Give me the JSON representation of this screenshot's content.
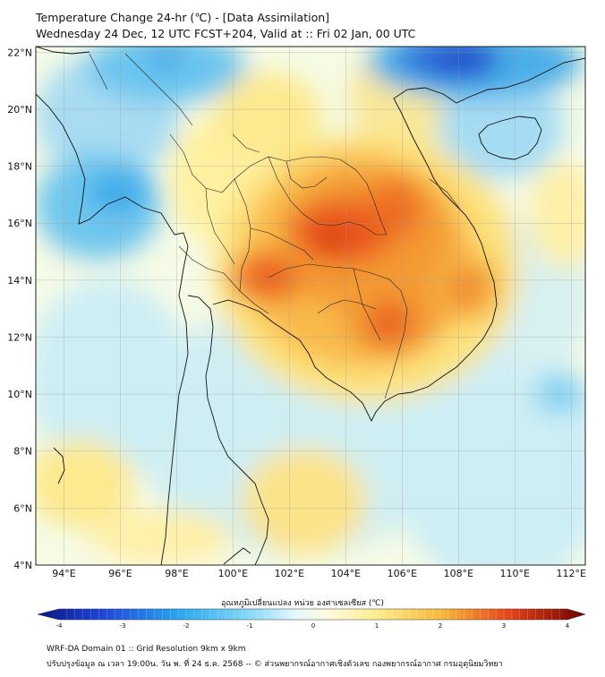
{
  "title": {
    "line1": "Temperature Change 24-hr (℃) - [Data Assimilation]",
    "line2": "Wednesday 24 Dec, 12 UTC FCST+204, Valid at :: Fri 02 Jan, 00 UTC"
  },
  "axes": {
    "lon_labels": [
      "94°E",
      "96°E",
      "98°E",
      "100°E",
      "102°E",
      "104°E",
      "106°E",
      "108°E",
      "110°E",
      "112°E"
    ],
    "lat_labels": [
      "22°N",
      "20°N",
      "18°N",
      "16°N",
      "14°N",
      "12°N",
      "10°N",
      "8°N",
      "6°N",
      "4°N"
    ]
  },
  "colorbar": {
    "title": "อุณหภูมิเปลี่ยนแปลง หน่วย องศาเซลเซียส (℃)",
    "ticks": [
      "-4",
      "-3",
      "-2",
      "-1",
      "0",
      "1",
      "2",
      "3",
      "4"
    ],
    "range": [
      -4,
      4
    ]
  },
  "colors": {
    "cold": "#0a1fc4",
    "neutral": "#fffbe0",
    "warm": "#e03010",
    "extreme": "#7a0000"
  },
  "footer": {
    "line1": "WRF-DA Domain 01 :: Grid Resolution 9km x 9km",
    "line2": "ปรับปรุงข้อมูล ณ เวลา 19:00น. วัน พ. ที่ 24 ธ.ค. 2568 -- © ส่วนพยากรณ์อากาศเชิงตัวเลข กองพยากรณ์อากาศ กรมอุตุนิยมวิทยา"
  },
  "chart_data": {
    "type": "heatmap",
    "title": "Temperature Change 24-hr (℃)",
    "units": "℃",
    "lon_range": [
      93,
      112.5
    ],
    "lat_range": [
      4,
      22.2
    ],
    "value_range": [
      -4,
      4
    ],
    "features": [
      {
        "name": "warm-core-northeast-thailand",
        "lon": 104.2,
        "lat": 15.6,
        "value": 3.0
      },
      {
        "name": "warm-core-laos-vietnam",
        "lon": 105.6,
        "lat": 16.4,
        "value": 2.6
      },
      {
        "name": "warm-central-thailand",
        "lon": 101.3,
        "lat": 14.1,
        "value": 2.8
      },
      {
        "name": "warm-cambodia",
        "lon": 105.5,
        "lat": 12.5,
        "value": 2.7
      },
      {
        "name": "warm-vietnam-coast",
        "lon": 108.3,
        "lat": 13.7,
        "value": 2.2
      },
      {
        "name": "cold-myanmar-coast",
        "lon": 95.5,
        "lat": 17.2,
        "value": -1.6
      },
      {
        "name": "cold-north-myanmar",
        "lon": 97.5,
        "lat": 20.8,
        "value": -1.6
      },
      {
        "name": "cold-south-china",
        "lon": 109.5,
        "lat": 21.9,
        "value": -2.8
      },
      {
        "name": "cold-south-china-sea",
        "lon": 110.5,
        "lat": 11.0,
        "value": -1.2
      },
      {
        "name": "cold-andaman-sea",
        "lon": 96.5,
        "lat": 10.5,
        "value": -1.0
      },
      {
        "name": "cold-gulf-of-thailand",
        "lon": 101.5,
        "lat": 8.0,
        "value": -1.0
      }
    ]
  }
}
